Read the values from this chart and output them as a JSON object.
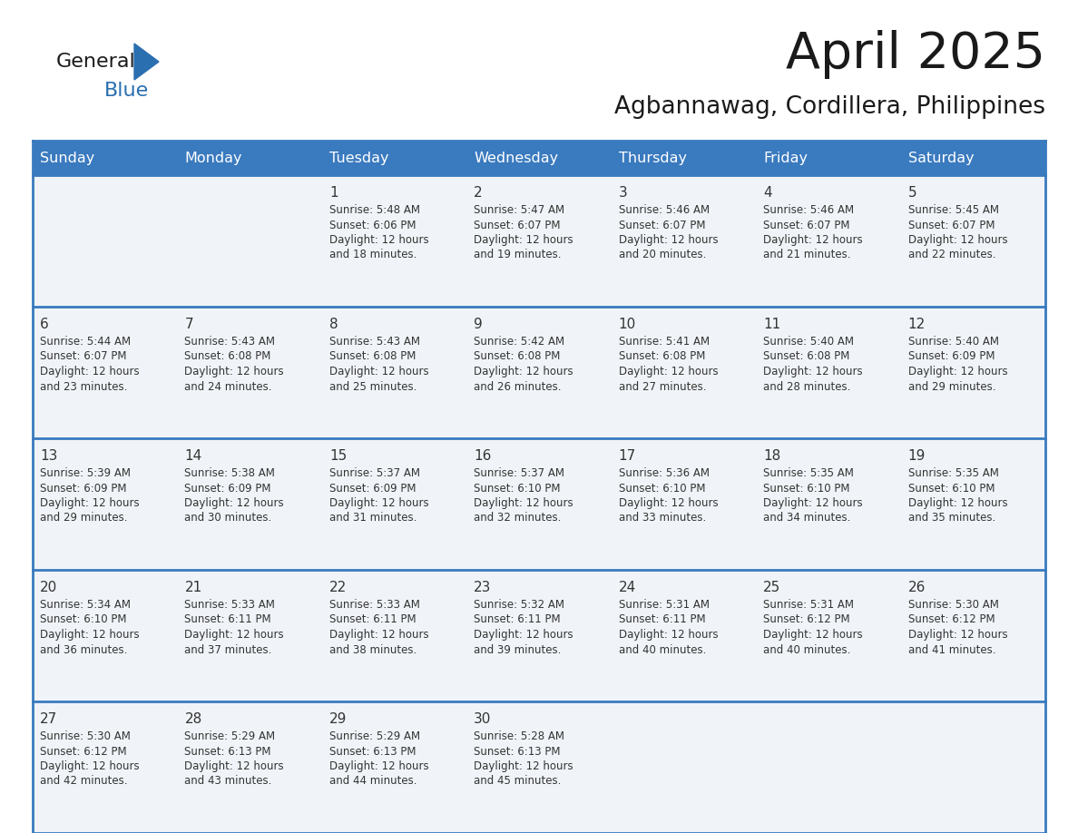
{
  "title": "April 2025",
  "subtitle": "Agbannawag, Cordillera, Philippines",
  "header_bg_color": "#3a7abf",
  "header_text_color": "#ffffff",
  "day_headers": [
    "Sunday",
    "Monday",
    "Tuesday",
    "Wednesday",
    "Thursday",
    "Friday",
    "Saturday"
  ],
  "cell_bg": "#f0f4f8",
  "row_line_color": "#3a7abf",
  "date_text_color": "#333333",
  "info_text_color": "#333333",
  "background_color": "#ffffff",
  "logo_general_color": "#1a1a1a",
  "logo_blue_color": "#2a6fb0",
  "logo_triangle_color": "#2a6fb0",
  "title_color": "#1a1a1a",
  "subtitle_color": "#1a1a1a",
  "calendar_data": [
    [
      {
        "day": null,
        "sunrise": null,
        "sunset": null,
        "daylight_hours": null,
        "daylight_minutes": null
      },
      {
        "day": null,
        "sunrise": null,
        "sunset": null,
        "daylight_hours": null,
        "daylight_minutes": null
      },
      {
        "day": 1,
        "sunrise": "5:48 AM",
        "sunset": "6:06 PM",
        "daylight_hours": 12,
        "daylight_minutes": 18
      },
      {
        "day": 2,
        "sunrise": "5:47 AM",
        "sunset": "6:07 PM",
        "daylight_hours": 12,
        "daylight_minutes": 19
      },
      {
        "day": 3,
        "sunrise": "5:46 AM",
        "sunset": "6:07 PM",
        "daylight_hours": 12,
        "daylight_minutes": 20
      },
      {
        "day": 4,
        "sunrise": "5:46 AM",
        "sunset": "6:07 PM",
        "daylight_hours": 12,
        "daylight_minutes": 21
      },
      {
        "day": 5,
        "sunrise": "5:45 AM",
        "sunset": "6:07 PM",
        "daylight_hours": 12,
        "daylight_minutes": 22
      }
    ],
    [
      {
        "day": 6,
        "sunrise": "5:44 AM",
        "sunset": "6:07 PM",
        "daylight_hours": 12,
        "daylight_minutes": 23
      },
      {
        "day": 7,
        "sunrise": "5:43 AM",
        "sunset": "6:08 PM",
        "daylight_hours": 12,
        "daylight_minutes": 24
      },
      {
        "day": 8,
        "sunrise": "5:43 AM",
        "sunset": "6:08 PM",
        "daylight_hours": 12,
        "daylight_minutes": 25
      },
      {
        "day": 9,
        "sunrise": "5:42 AM",
        "sunset": "6:08 PM",
        "daylight_hours": 12,
        "daylight_minutes": 26
      },
      {
        "day": 10,
        "sunrise": "5:41 AM",
        "sunset": "6:08 PM",
        "daylight_hours": 12,
        "daylight_minutes": 27
      },
      {
        "day": 11,
        "sunrise": "5:40 AM",
        "sunset": "6:08 PM",
        "daylight_hours": 12,
        "daylight_minutes": 28
      },
      {
        "day": 12,
        "sunrise": "5:40 AM",
        "sunset": "6:09 PM",
        "daylight_hours": 12,
        "daylight_minutes": 29
      }
    ],
    [
      {
        "day": 13,
        "sunrise": "5:39 AM",
        "sunset": "6:09 PM",
        "daylight_hours": 12,
        "daylight_minutes": 29
      },
      {
        "day": 14,
        "sunrise": "5:38 AM",
        "sunset": "6:09 PM",
        "daylight_hours": 12,
        "daylight_minutes": 30
      },
      {
        "day": 15,
        "sunrise": "5:37 AM",
        "sunset": "6:09 PM",
        "daylight_hours": 12,
        "daylight_minutes": 31
      },
      {
        "day": 16,
        "sunrise": "5:37 AM",
        "sunset": "6:10 PM",
        "daylight_hours": 12,
        "daylight_minutes": 32
      },
      {
        "day": 17,
        "sunrise": "5:36 AM",
        "sunset": "6:10 PM",
        "daylight_hours": 12,
        "daylight_minutes": 33
      },
      {
        "day": 18,
        "sunrise": "5:35 AM",
        "sunset": "6:10 PM",
        "daylight_hours": 12,
        "daylight_minutes": 34
      },
      {
        "day": 19,
        "sunrise": "5:35 AM",
        "sunset": "6:10 PM",
        "daylight_hours": 12,
        "daylight_minutes": 35
      }
    ],
    [
      {
        "day": 20,
        "sunrise": "5:34 AM",
        "sunset": "6:10 PM",
        "daylight_hours": 12,
        "daylight_minutes": 36
      },
      {
        "day": 21,
        "sunrise": "5:33 AM",
        "sunset": "6:11 PM",
        "daylight_hours": 12,
        "daylight_minutes": 37
      },
      {
        "day": 22,
        "sunrise": "5:33 AM",
        "sunset": "6:11 PM",
        "daylight_hours": 12,
        "daylight_minutes": 38
      },
      {
        "day": 23,
        "sunrise": "5:32 AM",
        "sunset": "6:11 PM",
        "daylight_hours": 12,
        "daylight_minutes": 39
      },
      {
        "day": 24,
        "sunrise": "5:31 AM",
        "sunset": "6:11 PM",
        "daylight_hours": 12,
        "daylight_minutes": 40
      },
      {
        "day": 25,
        "sunrise": "5:31 AM",
        "sunset": "6:12 PM",
        "daylight_hours": 12,
        "daylight_minutes": 40
      },
      {
        "day": 26,
        "sunrise": "5:30 AM",
        "sunset": "6:12 PM",
        "daylight_hours": 12,
        "daylight_minutes": 41
      }
    ],
    [
      {
        "day": 27,
        "sunrise": "5:30 AM",
        "sunset": "6:12 PM",
        "daylight_hours": 12,
        "daylight_minutes": 42
      },
      {
        "day": 28,
        "sunrise": "5:29 AM",
        "sunset": "6:13 PM",
        "daylight_hours": 12,
        "daylight_minutes": 43
      },
      {
        "day": 29,
        "sunrise": "5:29 AM",
        "sunset": "6:13 PM",
        "daylight_hours": 12,
        "daylight_minutes": 44
      },
      {
        "day": 30,
        "sunrise": "5:28 AM",
        "sunset": "6:13 PM",
        "daylight_hours": 12,
        "daylight_minutes": 45
      },
      {
        "day": null,
        "sunrise": null,
        "sunset": null,
        "daylight_hours": null,
        "daylight_minutes": null
      },
      {
        "day": null,
        "sunrise": null,
        "sunset": null,
        "daylight_hours": null,
        "daylight_minutes": null
      },
      {
        "day": null,
        "sunrise": null,
        "sunset": null,
        "daylight_hours": null,
        "daylight_minutes": null
      }
    ]
  ]
}
